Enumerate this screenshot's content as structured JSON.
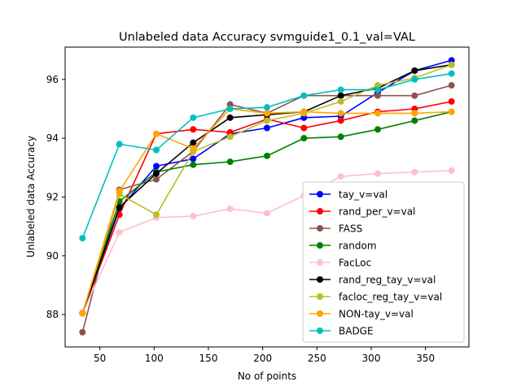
{
  "chart_data": {
    "type": "line",
    "title": "Unlabeled data Accuracy svmguide1_0.1_val=VAL",
    "xlabel": "No of points",
    "ylabel": "Unlabeled data Accuracy",
    "xlim": [
      18,
      390
    ],
    "ylim": [
      86.9,
      97.1
    ],
    "xticks": [
      50,
      100,
      150,
      200,
      250,
      300,
      350
    ],
    "yticks": [
      88,
      90,
      92,
      94,
      96
    ],
    "grid": false,
    "legend_position": "lower-right",
    "x": [
      34,
      68,
      102,
      136,
      170,
      204,
      238,
      272,
      306,
      340,
      374
    ],
    "series": [
      {
        "name": "tay_v=val",
        "color": "#0000ff",
        "values": [
          88.05,
          91.6,
          93.05,
          93.3,
          94.15,
          94.35,
          94.7,
          94.75,
          95.55,
          96.3,
          96.65
        ]
      },
      {
        "name": "rand_per_v=val",
        "color": "#ff0000",
        "values": [
          88.05,
          91.4,
          94.15,
          94.3,
          94.2,
          94.65,
          94.35,
          94.6,
          94.9,
          95.0,
          95.25
        ]
      },
      {
        "name": "FASS",
        "color": "#8c564b",
        "values": [
          87.4,
          92.25,
          92.6,
          93.55,
          95.15,
          94.85,
          95.45,
          95.45,
          95.45,
          95.45,
          95.8
        ]
      },
      {
        "name": "random",
        "color": "#008000",
        "values": [
          88.05,
          91.85,
          92.85,
          93.1,
          93.2,
          93.4,
          94.0,
          94.05,
          94.3,
          94.6,
          94.9
        ]
      },
      {
        "name": "FacLoc",
        "color": "#ffc0cb",
        "values": [
          88.05,
          90.8,
          91.3,
          91.35,
          91.6,
          91.45,
          92.05,
          92.7,
          92.8,
          92.85,
          92.9
        ]
      },
      {
        "name": "rand_reg_tay_v=val",
        "color": "#000000",
        "values": [
          88.05,
          91.65,
          92.8,
          93.85,
          94.7,
          94.8,
          94.9,
          95.45,
          95.7,
          96.3,
          96.5
        ]
      },
      {
        "name": "facloc_reg_tay_v=val",
        "color": "#bcbd22",
        "values": [
          88.05,
          92.1,
          91.4,
          93.55,
          94.05,
          94.6,
          94.85,
          95.25,
          95.8,
          96.05,
          96.5
        ]
      },
      {
        "name": "NON-tay_v=val",
        "color": "#ffa500",
        "values": [
          88.05,
          92.2,
          94.15,
          93.65,
          95.0,
          94.85,
          94.9,
          94.85,
          94.85,
          94.85,
          94.9
        ]
      },
      {
        "name": "BADGE",
        "color": "#00bfbf",
        "values": [
          90.6,
          93.8,
          93.6,
          94.7,
          95.0,
          95.05,
          95.45,
          95.65,
          95.65,
          96.0,
          96.2
        ]
      }
    ]
  }
}
